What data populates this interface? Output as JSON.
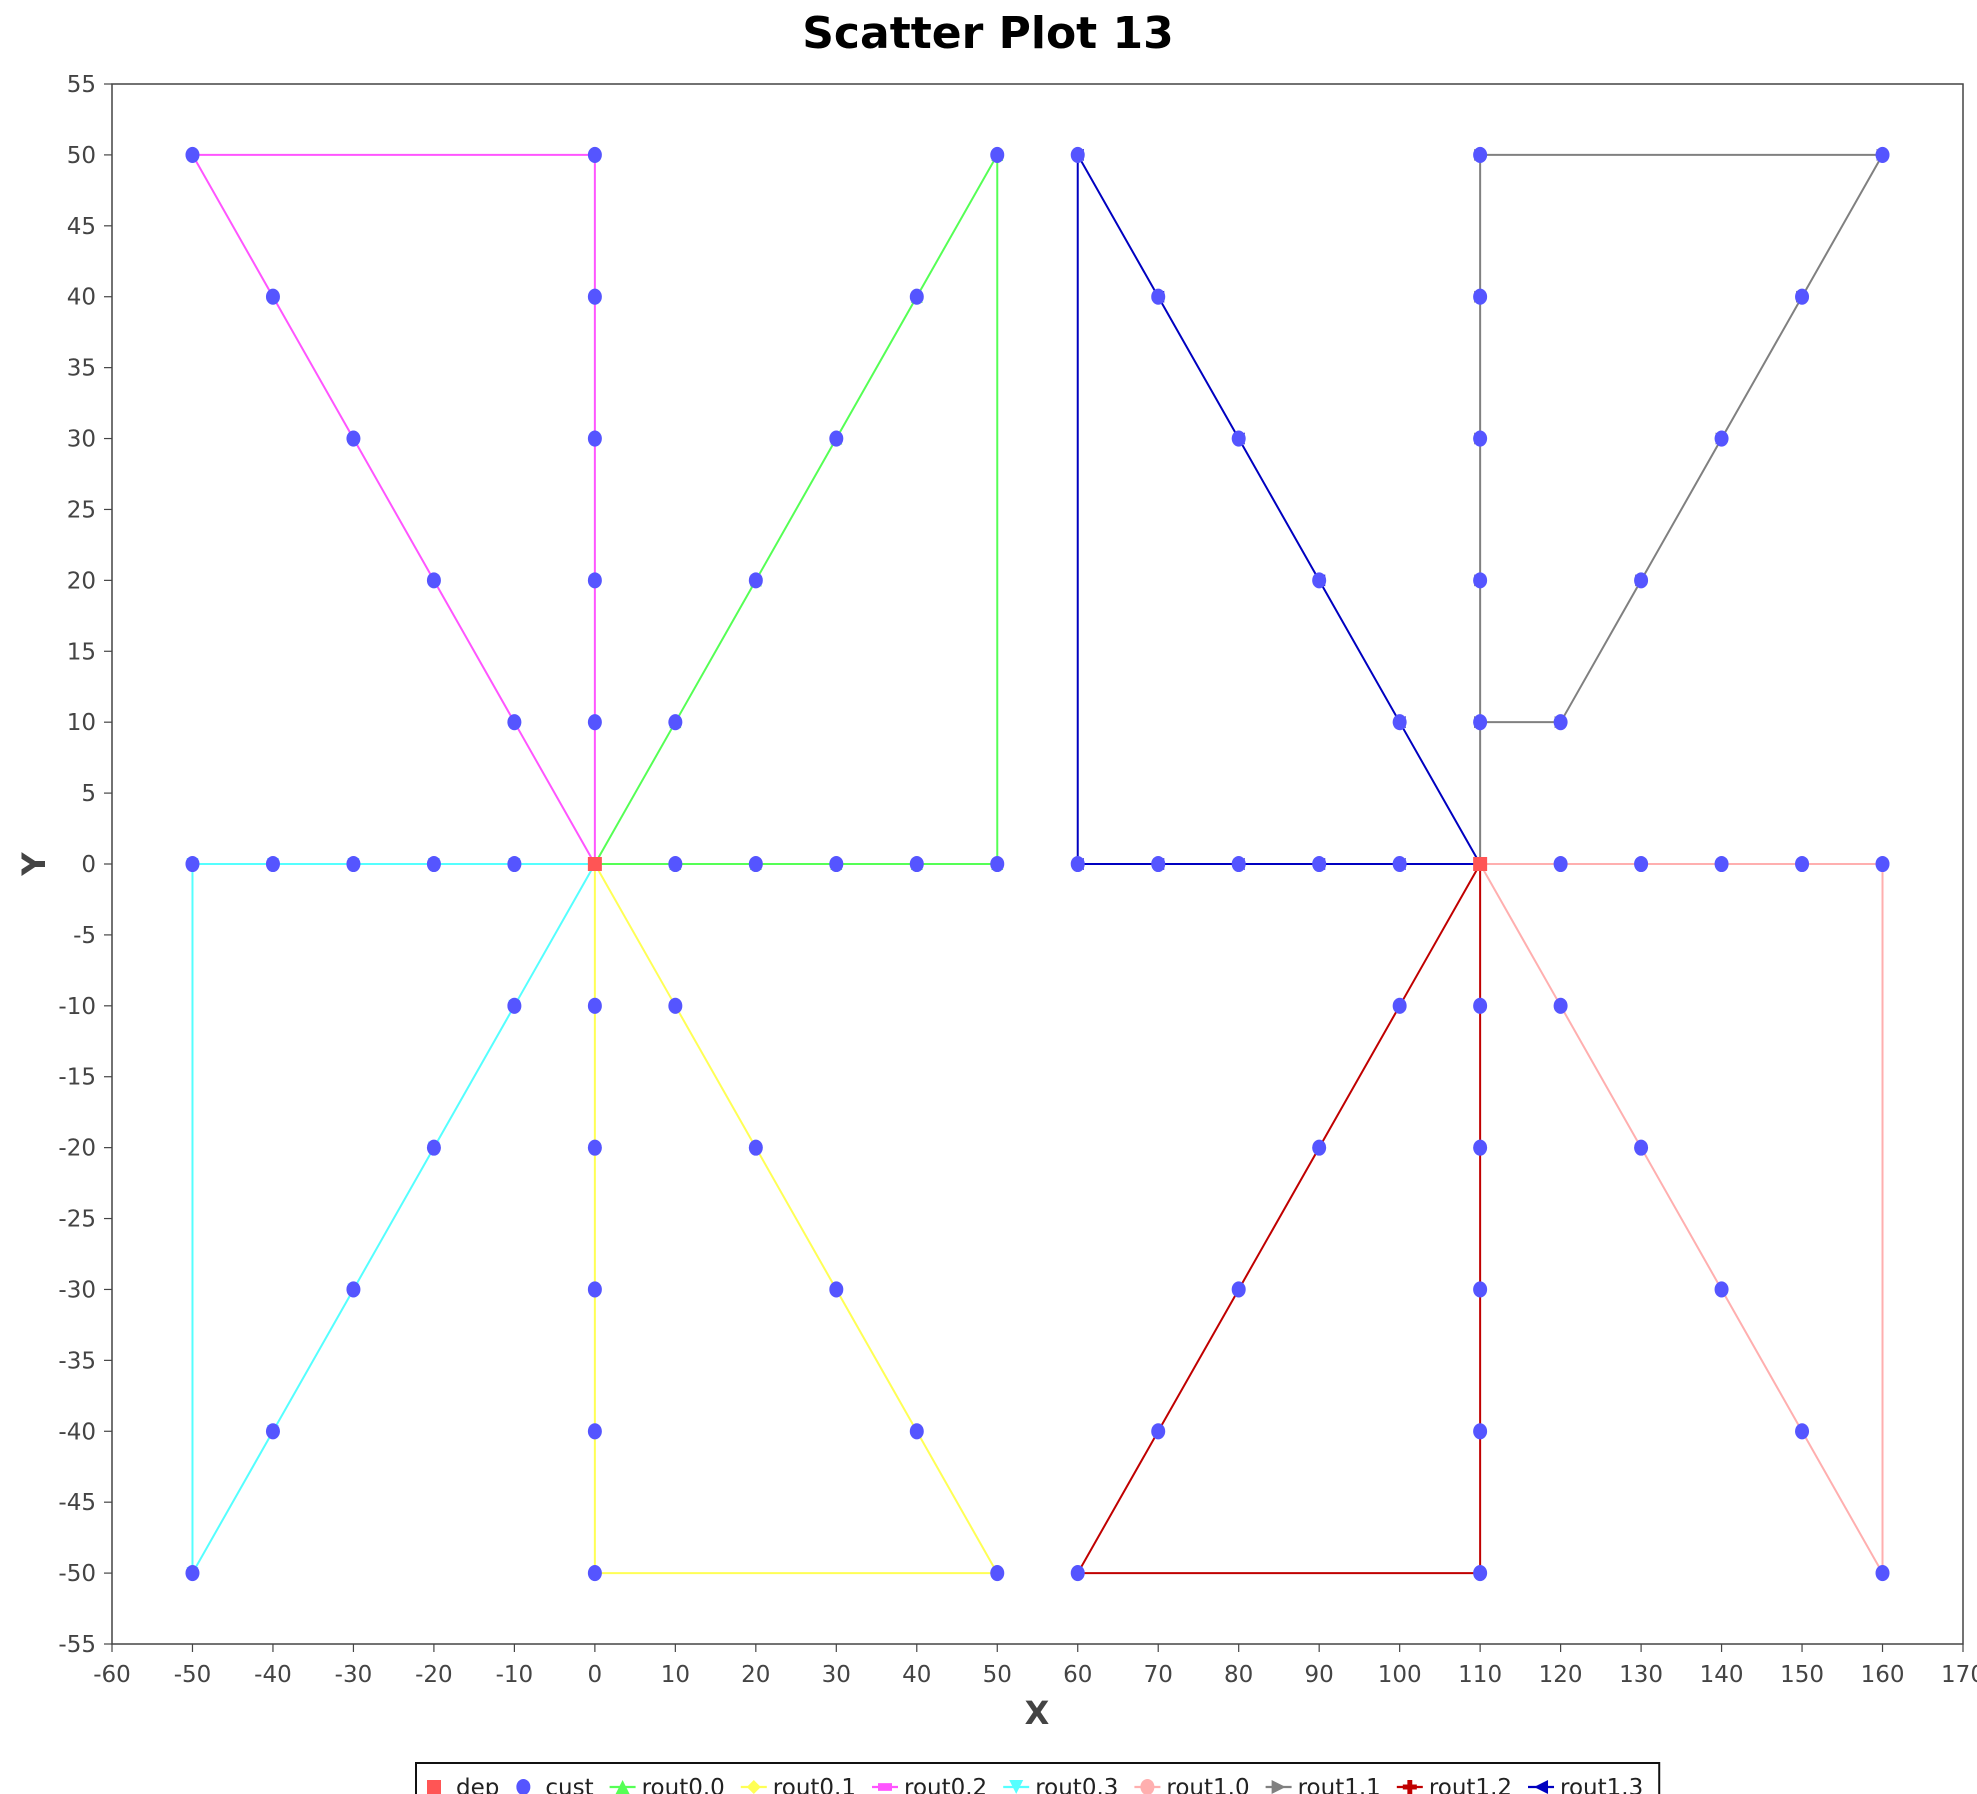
{
  "chart_data": {
    "type": "scatter",
    "title": "Scatter Plot 13",
    "xlabel": "X",
    "ylabel": "Y",
    "xlim": [
      -60,
      170
    ],
    "ylim": [
      -55,
      55
    ],
    "x_ticks": [
      -60,
      -50,
      -40,
      -30,
      -20,
      -10,
      0,
      10,
      20,
      30,
      40,
      50,
      60,
      70,
      80,
      90,
      100,
      110,
      120,
      130,
      140,
      150,
      160,
      170
    ],
    "y_ticks": [
      55,
      50,
      45,
      40,
      35,
      30,
      25,
      20,
      15,
      10,
      5,
      0,
      -5,
      -10,
      -15,
      -20,
      -25,
      -30,
      -35,
      -40,
      -45,
      -50,
      -55
    ],
    "grid": false,
    "legend_position": "bottom",
    "series": [
      {
        "name": "dep",
        "kind": "points",
        "marker": "square",
        "color": "#ff5555",
        "points": [
          [
            0,
            0
          ],
          [
            110,
            0
          ]
        ]
      },
      {
        "name": "cust",
        "kind": "points",
        "marker": "circle",
        "color": "#5555ff",
        "points": [
          [
            -50,
            50
          ],
          [
            0,
            50
          ],
          [
            50,
            50
          ],
          [
            60,
            50
          ],
          [
            110,
            50
          ],
          [
            160,
            50
          ],
          [
            -40,
            40
          ],
          [
            0,
            40
          ],
          [
            40,
            40
          ],
          [
            70,
            40
          ],
          [
            110,
            40
          ],
          [
            150,
            40
          ],
          [
            -30,
            30
          ],
          [
            0,
            30
          ],
          [
            30,
            30
          ],
          [
            80,
            30
          ],
          [
            110,
            30
          ],
          [
            140,
            30
          ],
          [
            -20,
            20
          ],
          [
            0,
            20
          ],
          [
            20,
            20
          ],
          [
            90,
            20
          ],
          [
            110,
            20
          ],
          [
            130,
            20
          ],
          [
            -10,
            10
          ],
          [
            0,
            10
          ],
          [
            10,
            10
          ],
          [
            100,
            10
          ],
          [
            110,
            10
          ],
          [
            120,
            10
          ],
          [
            -50,
            0
          ],
          [
            -40,
            0
          ],
          [
            -30,
            0
          ],
          [
            -20,
            0
          ],
          [
            -10,
            0
          ],
          [
            10,
            0
          ],
          [
            20,
            0
          ],
          [
            30,
            0
          ],
          [
            40,
            0
          ],
          [
            50,
            0
          ],
          [
            60,
            0
          ],
          [
            70,
            0
          ],
          [
            80,
            0
          ],
          [
            90,
            0
          ],
          [
            100,
            0
          ],
          [
            120,
            0
          ],
          [
            130,
            0
          ],
          [
            140,
            0
          ],
          [
            150,
            0
          ],
          [
            160,
            0
          ],
          [
            -10,
            -10
          ],
          [
            0,
            -10
          ],
          [
            10,
            -10
          ],
          [
            100,
            -10
          ],
          [
            110,
            -10
          ],
          [
            120,
            -10
          ],
          [
            -20,
            -20
          ],
          [
            0,
            -20
          ],
          [
            20,
            -20
          ],
          [
            90,
            -20
          ],
          [
            110,
            -20
          ],
          [
            130,
            -20
          ],
          [
            -30,
            -30
          ],
          [
            0,
            -30
          ],
          [
            30,
            -30
          ],
          [
            80,
            -30
          ],
          [
            110,
            -30
          ],
          [
            140,
            -30
          ],
          [
            -40,
            -40
          ],
          [
            0,
            -40
          ],
          [
            40,
            -40
          ],
          [
            70,
            -40
          ],
          [
            110,
            -40
          ],
          [
            150,
            -40
          ],
          [
            -50,
            -50
          ],
          [
            0,
            -50
          ],
          [
            50,
            -50
          ],
          [
            60,
            -50
          ],
          [
            110,
            -50
          ],
          [
            160,
            -50
          ]
        ]
      },
      {
        "name": "rout0.0",
        "kind": "route",
        "marker": "triangle-up",
        "color": "#55ff55",
        "points": [
          [
            0,
            0
          ],
          [
            10,
            10
          ],
          [
            20,
            20
          ],
          [
            30,
            30
          ],
          [
            40,
            40
          ],
          [
            50,
            50
          ],
          [
            50,
            0
          ],
          [
            40,
            0
          ],
          [
            30,
            0
          ],
          [
            20,
            0
          ],
          [
            10,
            0
          ],
          [
            0,
            0
          ]
        ]
      },
      {
        "name": "rout0.1",
        "kind": "route",
        "marker": "diamond",
        "color": "#ffff55",
        "points": [
          [
            0,
            0
          ],
          [
            10,
            -10
          ],
          [
            20,
            -20
          ],
          [
            30,
            -30
          ],
          [
            40,
            -40
          ],
          [
            50,
            -50
          ],
          [
            0,
            -50
          ],
          [
            0,
            -40
          ],
          [
            0,
            -30
          ],
          [
            0,
            -20
          ],
          [
            0,
            -10
          ],
          [
            0,
            0
          ]
        ]
      },
      {
        "name": "rout0.2",
        "kind": "route",
        "marker": "rect",
        "color": "#ff55ff",
        "points": [
          [
            0,
            0
          ],
          [
            -10,
            10
          ],
          [
            -20,
            20
          ],
          [
            -30,
            30
          ],
          [
            -40,
            40
          ],
          [
            -50,
            50
          ],
          [
            0,
            50
          ],
          [
            0,
            40
          ],
          [
            0,
            30
          ],
          [
            0,
            20
          ],
          [
            0,
            10
          ],
          [
            0,
            0
          ]
        ]
      },
      {
        "name": "rout0.3",
        "kind": "route",
        "marker": "triangle-down",
        "color": "#55ffff",
        "points": [
          [
            0,
            0
          ],
          [
            -10,
            -10
          ],
          [
            -20,
            -20
          ],
          [
            -30,
            -30
          ],
          [
            -40,
            -40
          ],
          [
            -50,
            -50
          ],
          [
            -50,
            0
          ],
          [
            -40,
            0
          ],
          [
            -30,
            0
          ],
          [
            -20,
            0
          ],
          [
            -10,
            0
          ],
          [
            0,
            0
          ]
        ]
      },
      {
        "name": "rout1.0",
        "kind": "route",
        "marker": "circle",
        "color": "#ffafaf",
        "points": [
          [
            110,
            0
          ],
          [
            120,
            -10
          ],
          [
            130,
            -20
          ],
          [
            140,
            -30
          ],
          [
            150,
            -40
          ],
          [
            160,
            -50
          ],
          [
            160,
            0
          ],
          [
            150,
            0
          ],
          [
            140,
            0
          ],
          [
            130,
            0
          ],
          [
            120,
            0
          ],
          [
            110,
            0
          ]
        ]
      },
      {
        "name": "rout1.1",
        "kind": "route",
        "marker": "triangle-right",
        "color": "#808080",
        "points": [
          [
            110,
            0
          ],
          [
            110,
            10
          ],
          [
            120,
            10
          ],
          [
            130,
            20
          ],
          [
            140,
            30
          ],
          [
            150,
            40
          ],
          [
            160,
            50
          ],
          [
            110,
            50
          ],
          [
            110,
            40
          ],
          [
            110,
            30
          ],
          [
            110,
            20
          ],
          [
            110,
            10
          ],
          [
            110,
            0
          ]
        ]
      },
      {
        "name": "rout1.2",
        "kind": "route",
        "marker": "cross",
        "color": "#c00000",
        "points": [
          [
            110,
            0
          ],
          [
            100,
            -10
          ],
          [
            90,
            -20
          ],
          [
            80,
            -30
          ],
          [
            70,
            -40
          ],
          [
            60,
            -50
          ],
          [
            110,
            -50
          ],
          [
            110,
            -40
          ],
          [
            110,
            -30
          ],
          [
            110,
            -20
          ],
          [
            110,
            -10
          ],
          [
            110,
            0
          ]
        ]
      },
      {
        "name": "rout1.3",
        "kind": "route",
        "marker": "triangle-left",
        "color": "#0000c0",
        "points": [
          [
            110,
            0
          ],
          [
            100,
            10
          ],
          [
            90,
            20
          ],
          [
            80,
            30
          ],
          [
            70,
            40
          ],
          [
            60,
            50
          ],
          [
            60,
            0
          ],
          [
            70,
            0
          ],
          [
            80,
            0
          ],
          [
            90,
            0
          ],
          [
            100,
            0
          ],
          [
            110,
            0
          ]
        ]
      }
    ]
  }
}
